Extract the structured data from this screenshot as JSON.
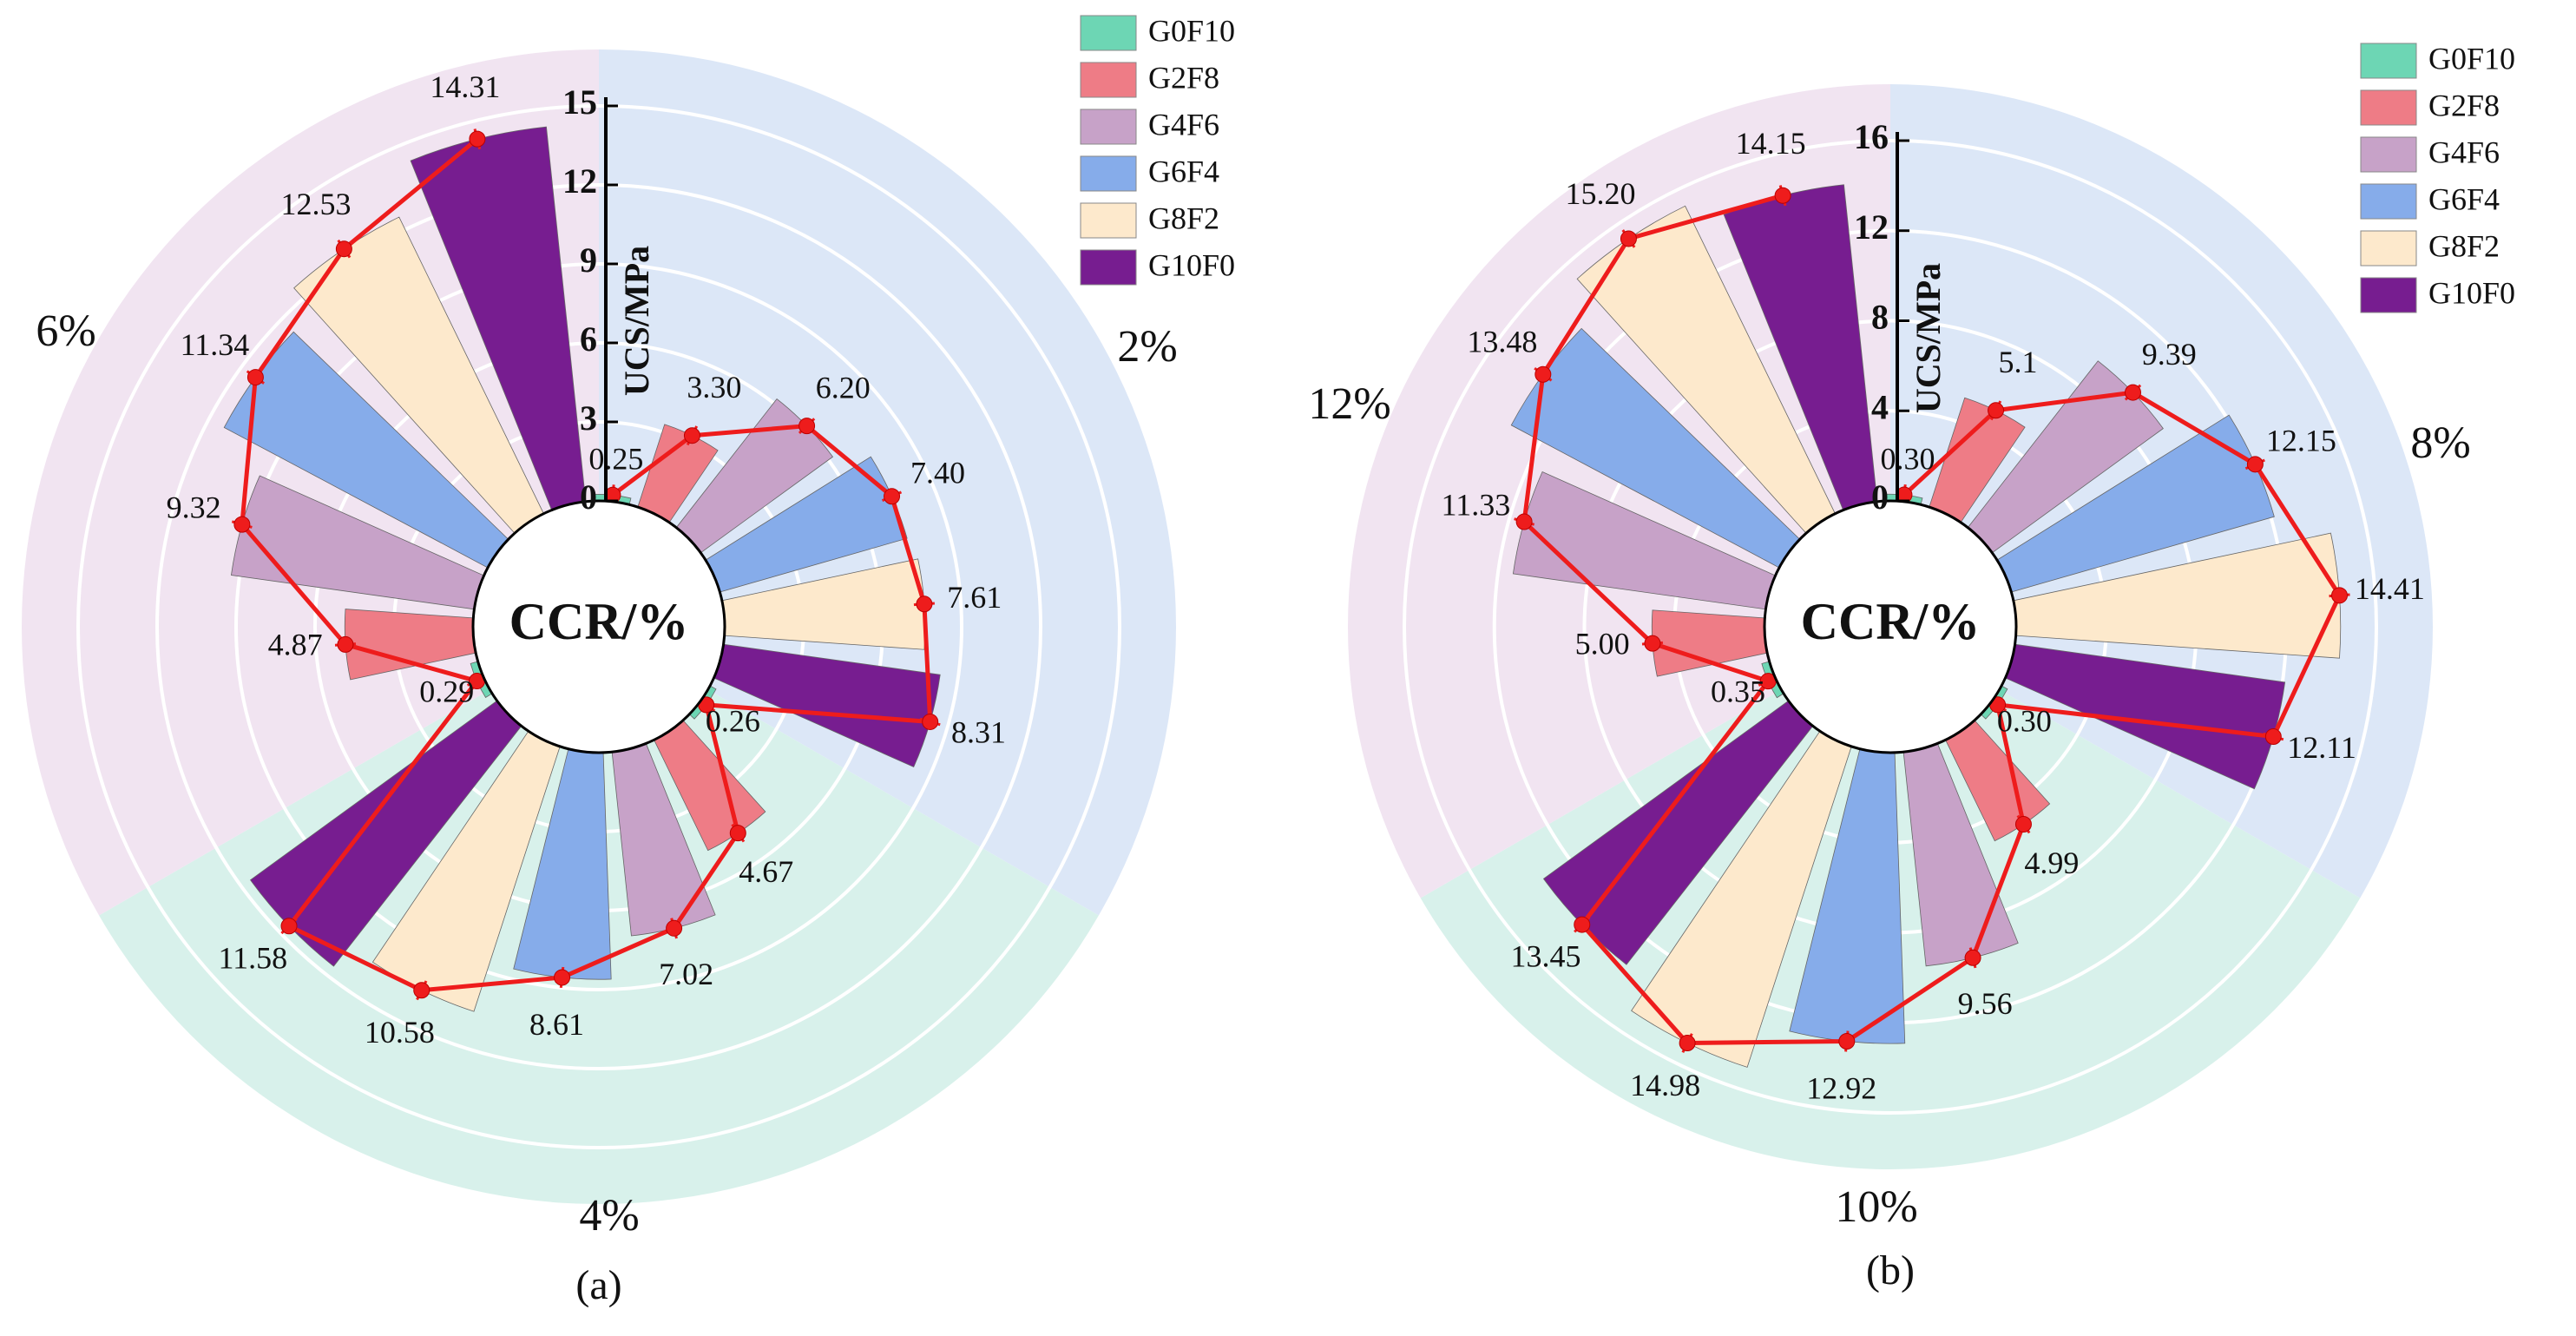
{
  "chart_data": [
    {
      "type": "radial-bar",
      "panel": "(a)",
      "center_label": "CCR/%",
      "axis_title": "UCS/MPa",
      "ticks": [
        "0",
        "3",
        "6",
        "9",
        "12",
        "15"
      ],
      "rmax": 15,
      "series_names": [
        "G0F10",
        "G2F8",
        "G4F6",
        "G6F4",
        "G8F2",
        "G10F0"
      ],
      "colors": {
        "G0F10": "#6dd6b4",
        "G2F8": "#ee7c86",
        "G4F6": "#c7a2c8",
        "G6F4": "#86acea",
        "G8F2": "#fde9cc",
        "G10F0": "#771d90",
        "line": "#ee1c1c",
        "bg_2": "#dce7f7",
        "bg_4": "#d8f1eb",
        "bg_6": "#f1e4f1"
      },
      "groups": [
        {
          "name": "2%",
          "values": [
            0.25,
            3.3,
            6.2,
            7.4,
            7.61,
            8.31
          ],
          "labels": [
            "0.25",
            "3.30",
            "6.20",
            "7.40",
            "7.61",
            "8.31"
          ]
        },
        {
          "name": "4%",
          "values": [
            0.26,
            4.67,
            7.02,
            8.61,
            10.58,
            11.58
          ],
          "labels": [
            "0.26",
            "4.67",
            "7.02",
            "8.61",
            "10.58",
            "11.58"
          ]
        },
        {
          "name": "6%",
          "values": [
            0.29,
            4.87,
            9.32,
            11.34,
            12.53,
            14.31
          ],
          "labels": [
            "0.29",
            "4.87",
            "9.32",
            "11.34",
            "12.53",
            "14.31"
          ]
        }
      ]
    },
    {
      "type": "radial-bar",
      "panel": "(b)",
      "center_label": "CCR/%",
      "axis_title": "UCS/MPa",
      "ticks": [
        "0",
        "4",
        "8",
        "12",
        "16"
      ],
      "rmax": 16,
      "series_names": [
        "G0F10",
        "G2F8",
        "G4F6",
        "G6F4",
        "G8F2",
        "G10F0"
      ],
      "colors": {
        "G0F10": "#6dd6b4",
        "G2F8": "#ee7c86",
        "G4F6": "#c7a2c8",
        "G6F4": "#86acea",
        "G8F2": "#fde9cc",
        "G10F0": "#771d90",
        "line": "#ee1c1c",
        "bg_8": "#dce7f7",
        "bg_10": "#d8f1eb",
        "bg_12": "#f1e4f1"
      },
      "groups": [
        {
          "name": "8%",
          "values": [
            0.3,
            5.1,
            9.39,
            12.15,
            14.41,
            12.11
          ],
          "labels": [
            "0.30",
            "5.1",
            "9.39",
            "12.15",
            "14.41",
            "12.11"
          ]
        },
        {
          "name": "10%",
          "values": [
            0.3,
            4.99,
            9.56,
            12.92,
            14.98,
            13.45
          ],
          "labels": [
            "0.30",
            "4.99",
            "9.56",
            "12.92",
            "14.98",
            "13.45"
          ]
        },
        {
          "name": "12%",
          "values": [
            0.35,
            5.0,
            11.33,
            13.48,
            15.2,
            14.15
          ],
          "labels": [
            "0.35",
            "5.00",
            "11.33",
            "13.48",
            "15.20",
            "14.15"
          ]
        }
      ]
    }
  ]
}
